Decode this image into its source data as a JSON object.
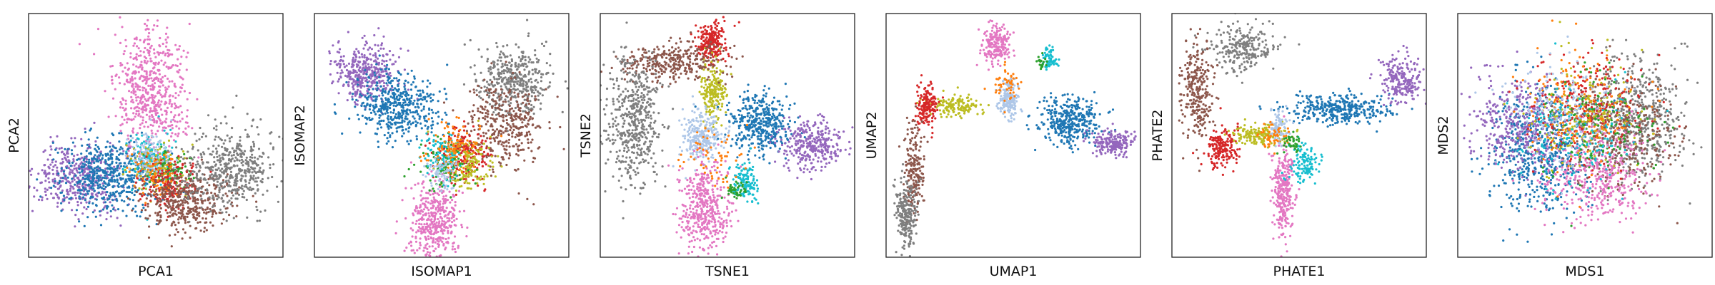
{
  "colors": {
    "blue": "#1f77b4",
    "orange": "#ff7f0e",
    "green": "#2ca02c",
    "red": "#d62728",
    "purple": "#9467bd",
    "brown": "#8c564b",
    "pink": "#e377c2",
    "gray": "#7f7f7f",
    "olive": "#bcbd22",
    "cyan": "#17becf",
    "lightblue": "#aec7e8"
  },
  "chart_data": [
    {
      "type": "scatter",
      "title": "",
      "xlabel": "PCA1",
      "ylabel": "PCA2",
      "grid": false,
      "legend": "none",
      "xlim": [
        0,
        100
      ],
      "ylim": [
        0,
        100
      ],
      "clusters": [
        {
          "color": "pink",
          "cx": 48,
          "cy": 67,
          "sx": 7,
          "sy": 14,
          "n": 600
        },
        {
          "color": "purple",
          "cx": 20,
          "cy": 33,
          "sx": 8,
          "sy": 7,
          "n": 420
        },
        {
          "color": "blue",
          "cx": 31,
          "cy": 34,
          "sx": 9,
          "sy": 8,
          "n": 520
        },
        {
          "color": "cyan",
          "cx": 48,
          "cy": 40,
          "sx": 5,
          "sy": 6,
          "n": 160
        },
        {
          "color": "olive",
          "cx": 52,
          "cy": 37,
          "sx": 5,
          "sy": 5,
          "n": 120
        },
        {
          "color": "green",
          "cx": 55,
          "cy": 36,
          "sx": 4,
          "sy": 4,
          "n": 90
        },
        {
          "color": "red",
          "cx": 55,
          "cy": 30,
          "sx": 5,
          "sy": 5,
          "n": 160
        },
        {
          "color": "orange",
          "cx": 50,
          "cy": 35,
          "sx": 5,
          "sy": 5,
          "n": 80
        },
        {
          "color": "brown",
          "cx": 62,
          "cy": 23,
          "sx": 9,
          "sy": 6,
          "n": 420
        },
        {
          "color": "gray",
          "cx": 79,
          "cy": 36,
          "sx": 9,
          "sy": 8,
          "n": 500
        },
        {
          "color": "lightblue",
          "cx": 47,
          "cy": 42,
          "sx": 4,
          "sy": 5,
          "n": 100
        }
      ]
    },
    {
      "type": "scatter",
      "title": "",
      "xlabel": "ISOMAP1",
      "ylabel": "ISOMAP2",
      "grid": false,
      "legend": "none",
      "xlim": [
        0,
        100
      ],
      "ylim": [
        0,
        100
      ],
      "clusters": [
        {
          "color": "purple",
          "cx": 20,
          "cy": 76,
          "sx": 6,
          "sy": 6,
          "n": 380
        },
        {
          "color": "blue",
          "cx": 33,
          "cy": 62,
          "sx": 8,
          "sy": 7,
          "n": 480
        },
        {
          "color": "pink",
          "cx": 47,
          "cy": 15,
          "sx": 5,
          "sy": 8,
          "n": 420
        },
        {
          "color": "gray",
          "cx": 78,
          "cy": 72,
          "sx": 7,
          "sy": 7,
          "n": 420
        },
        {
          "color": "brown",
          "cx": 75,
          "cy": 55,
          "sx": 8,
          "sy": 9,
          "n": 360
        },
        {
          "color": "red",
          "cx": 58,
          "cy": 42,
          "sx": 5,
          "sy": 6,
          "n": 220
        },
        {
          "color": "olive",
          "cx": 60,
          "cy": 38,
          "sx": 5,
          "sy": 5,
          "n": 160
        },
        {
          "color": "green",
          "cx": 52,
          "cy": 38,
          "sx": 5,
          "sy": 5,
          "n": 100
        },
        {
          "color": "cyan",
          "cx": 50,
          "cy": 42,
          "sx": 4,
          "sy": 5,
          "n": 90
        },
        {
          "color": "orange",
          "cx": 55,
          "cy": 45,
          "sx": 6,
          "sy": 6,
          "n": 100
        },
        {
          "color": "lightblue",
          "cx": 50,
          "cy": 35,
          "sx": 3,
          "sy": 4,
          "n": 70
        }
      ]
    },
    {
      "type": "scatter",
      "title": "",
      "xlabel": "TSNE1",
      "ylabel": "TSNE2",
      "grid": false,
      "legend": "none",
      "xlim": [
        0,
        100
      ],
      "ylim": [
        0,
        100
      ],
      "clusters": [
        {
          "color": "red",
          "cx": 43,
          "cy": 88,
          "sx": 3,
          "sy": 4,
          "n": 220
        },
        {
          "color": "olive",
          "cx": 44,
          "cy": 68,
          "sx": 2.5,
          "sy": 6,
          "n": 200
        },
        {
          "color": "brown",
          "cx": 28,
          "cy": 80,
          "sx": 10,
          "sy": 4,
          "n": 320
        },
        {
          "color": "gray",
          "cx": 13,
          "cy": 56,
          "sx": 5,
          "sy": 13,
          "n": 520
        },
        {
          "color": "lightblue",
          "cx": 40,
          "cy": 50,
          "sx": 4,
          "sy": 5,
          "n": 260
        },
        {
          "color": "blue",
          "cx": 63,
          "cy": 55,
          "sx": 6,
          "sy": 6,
          "n": 420
        },
        {
          "color": "purple",
          "cx": 83,
          "cy": 46,
          "sx": 6,
          "sy": 5,
          "n": 320
        },
        {
          "color": "pink",
          "cx": 41,
          "cy": 20,
          "sx": 5,
          "sy": 9,
          "n": 440
        },
        {
          "color": "cyan",
          "cx": 57,
          "cy": 31,
          "sx": 2.5,
          "sy": 4,
          "n": 130
        },
        {
          "color": "green",
          "cx": 53,
          "cy": 28,
          "sx": 2,
          "sy": 2,
          "n": 40
        },
        {
          "color": "orange",
          "cx": 45,
          "cy": 42,
          "sx": 6,
          "sy": 6,
          "n": 60
        }
      ]
    },
    {
      "type": "scatter",
      "title": "",
      "xlabel": "UMAP1",
      "ylabel": "UMAP2",
      "grid": false,
      "legend": "none",
      "xlim": [
        0,
        100
      ],
      "ylim": [
        0,
        100
      ],
      "clusters": [
        {
          "color": "pink",
          "cx": 43,
          "cy": 88,
          "sx": 3,
          "sy": 4,
          "n": 200
        },
        {
          "color": "cyan",
          "cx": 64,
          "cy": 81,
          "sx": 1.5,
          "sy": 2.5,
          "n": 70
        },
        {
          "color": "lightblue",
          "cx": 48,
          "cy": 65,
          "sx": 2,
          "sy": 4,
          "n": 180
        },
        {
          "color": "olive",
          "cx": 28,
          "cy": 62,
          "sx": 5,
          "sy": 2,
          "n": 150
        },
        {
          "color": "red",
          "cx": 16,
          "cy": 62,
          "sx": 2,
          "sy": 4,
          "n": 170
        },
        {
          "color": "blue",
          "cx": 72,
          "cy": 56,
          "sx": 6,
          "sy": 5,
          "n": 380
        },
        {
          "color": "purple",
          "cx": 89,
          "cy": 47,
          "sx": 4,
          "sy": 2.5,
          "n": 200
        },
        {
          "color": "brown",
          "cx": 11,
          "cy": 36,
          "sx": 2,
          "sy": 10,
          "n": 200
        },
        {
          "color": "gray",
          "cx": 8,
          "cy": 18,
          "sx": 2,
          "sy": 7,
          "n": 240
        },
        {
          "color": "orange",
          "cx": 47,
          "cy": 71,
          "sx": 3,
          "sy": 3,
          "n": 50
        },
        {
          "color": "green",
          "cx": 61,
          "cy": 80,
          "sx": 1,
          "sy": 1,
          "n": 20
        }
      ]
    },
    {
      "type": "scatter",
      "title": "",
      "xlabel": "PHATE1",
      "ylabel": "PHATE2",
      "grid": false,
      "legend": "none",
      "xlim": [
        0,
        100
      ],
      "ylim": [
        0,
        100
      ],
      "clusters": [
        {
          "color": "gray",
          "cx": 28,
          "cy": 86,
          "sx": 7,
          "sy": 5,
          "n": 260
        },
        {
          "color": "brown",
          "cx": 10,
          "cy": 68,
          "sx": 3,
          "sy": 10,
          "n": 280
        },
        {
          "color": "red",
          "cx": 20,
          "cy": 45,
          "sx": 3,
          "sy": 4,
          "n": 180
        },
        {
          "color": "olive",
          "cx": 34,
          "cy": 50,
          "sx": 5,
          "sy": 2,
          "n": 170
        },
        {
          "color": "blue",
          "cx": 66,
          "cy": 61,
          "sx": 10,
          "sy": 3,
          "n": 360
        },
        {
          "color": "purple",
          "cx": 90,
          "cy": 73,
          "sx": 4,
          "sy": 5,
          "n": 220
        },
        {
          "color": "pink",
          "cx": 44,
          "cy": 27,
          "sx": 2,
          "sy": 10,
          "n": 300
        },
        {
          "color": "cyan",
          "cx": 52,
          "cy": 38,
          "sx": 3,
          "sy": 4,
          "n": 120
        },
        {
          "color": "lightblue",
          "cx": 42,
          "cy": 54,
          "sx": 2,
          "sy": 3,
          "n": 90
        },
        {
          "color": "orange",
          "cx": 40,
          "cy": 50,
          "sx": 4,
          "sy": 3,
          "n": 50
        },
        {
          "color": "green",
          "cx": 47,
          "cy": 47,
          "sx": 2,
          "sy": 2,
          "n": 40
        }
      ]
    },
    {
      "type": "scatter",
      "title": "",
      "xlabel": "MDS1",
      "ylabel": "MDS2",
      "grid": false,
      "legend": "none",
      "xlim": [
        0,
        100
      ],
      "ylim": [
        0,
        100
      ],
      "clusters": [
        {
          "color": "blue",
          "cx": 32,
          "cy": 44,
          "sx": 10,
          "sy": 13,
          "n": 620
        },
        {
          "color": "purple",
          "cx": 24,
          "cy": 56,
          "sx": 9,
          "sy": 10,
          "n": 380
        },
        {
          "color": "gray",
          "cx": 70,
          "cy": 56,
          "sx": 10,
          "sy": 12,
          "n": 560
        },
        {
          "color": "brown",
          "cx": 64,
          "cy": 50,
          "sx": 11,
          "sy": 11,
          "n": 380
        },
        {
          "color": "pink",
          "cx": 55,
          "cy": 33,
          "sx": 10,
          "sy": 10,
          "n": 420
        },
        {
          "color": "red",
          "cx": 50,
          "cy": 63,
          "sx": 11,
          "sy": 11,
          "n": 240
        },
        {
          "color": "orange",
          "cx": 48,
          "cy": 60,
          "sx": 12,
          "sy": 12,
          "n": 180
        },
        {
          "color": "olive",
          "cx": 50,
          "cy": 58,
          "sx": 12,
          "sy": 12,
          "n": 180
        },
        {
          "color": "cyan",
          "cx": 45,
          "cy": 50,
          "sx": 12,
          "sy": 12,
          "n": 140
        },
        {
          "color": "green",
          "cx": 55,
          "cy": 55,
          "sx": 12,
          "sy": 12,
          "n": 120
        },
        {
          "color": "lightblue",
          "cx": 40,
          "cy": 60,
          "sx": 11,
          "sy": 11,
          "n": 150
        }
      ]
    }
  ]
}
